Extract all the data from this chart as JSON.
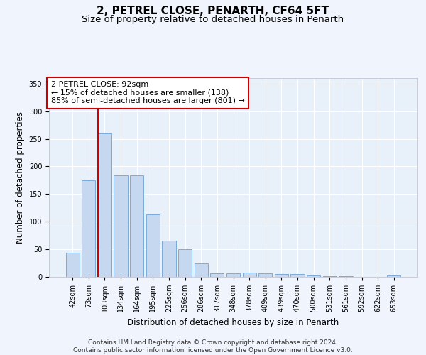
{
  "title": "2, PETREL CLOSE, PENARTH, CF64 5FT",
  "subtitle": "Size of property relative to detached houses in Penarth",
  "xlabel": "Distribution of detached houses by size in Penarth",
  "ylabel": "Number of detached properties",
  "categories": [
    "42sqm",
    "73sqm",
    "103sqm",
    "134sqm",
    "164sqm",
    "195sqm",
    "225sqm",
    "256sqm",
    "286sqm",
    "317sqm",
    "348sqm",
    "378sqm",
    "409sqm",
    "439sqm",
    "470sqm",
    "500sqm",
    "531sqm",
    "561sqm",
    "592sqm",
    "622sqm",
    "653sqm"
  ],
  "values": [
    44,
    175,
    260,
    184,
    184,
    113,
    65,
    50,
    25,
    7,
    7,
    8,
    7,
    5,
    5,
    3,
    1,
    1,
    0,
    0,
    3
  ],
  "bar_color": "#c5d8f0",
  "bar_edge_color": "#7aabdc",
  "vline_color": "#cc0000",
  "vline_bar_index": 2,
  "annotation_text": "2 PETREL CLOSE: 92sqm\n← 15% of detached houses are smaller (138)\n85% of semi-detached houses are larger (801) →",
  "annotation_box_facecolor": "#ffffff",
  "annotation_box_edgecolor": "#cc0000",
  "ylim": [
    0,
    360
  ],
  "yticks": [
    0,
    50,
    100,
    150,
    200,
    250,
    300,
    350
  ],
  "plot_bg_color": "#e8f0fa",
  "fig_bg_color": "#f0f4fc",
  "grid_color": "#ffffff",
  "footer": "Contains HM Land Registry data © Crown copyright and database right 2024.\nContains public sector information licensed under the Open Government Licence v3.0.",
  "title_fontsize": 11,
  "subtitle_fontsize": 9.5,
  "ylabel_fontsize": 8.5,
  "xlabel_fontsize": 8.5,
  "tick_fontsize": 7,
  "annot_fontsize": 8,
  "footer_fontsize": 6.5
}
